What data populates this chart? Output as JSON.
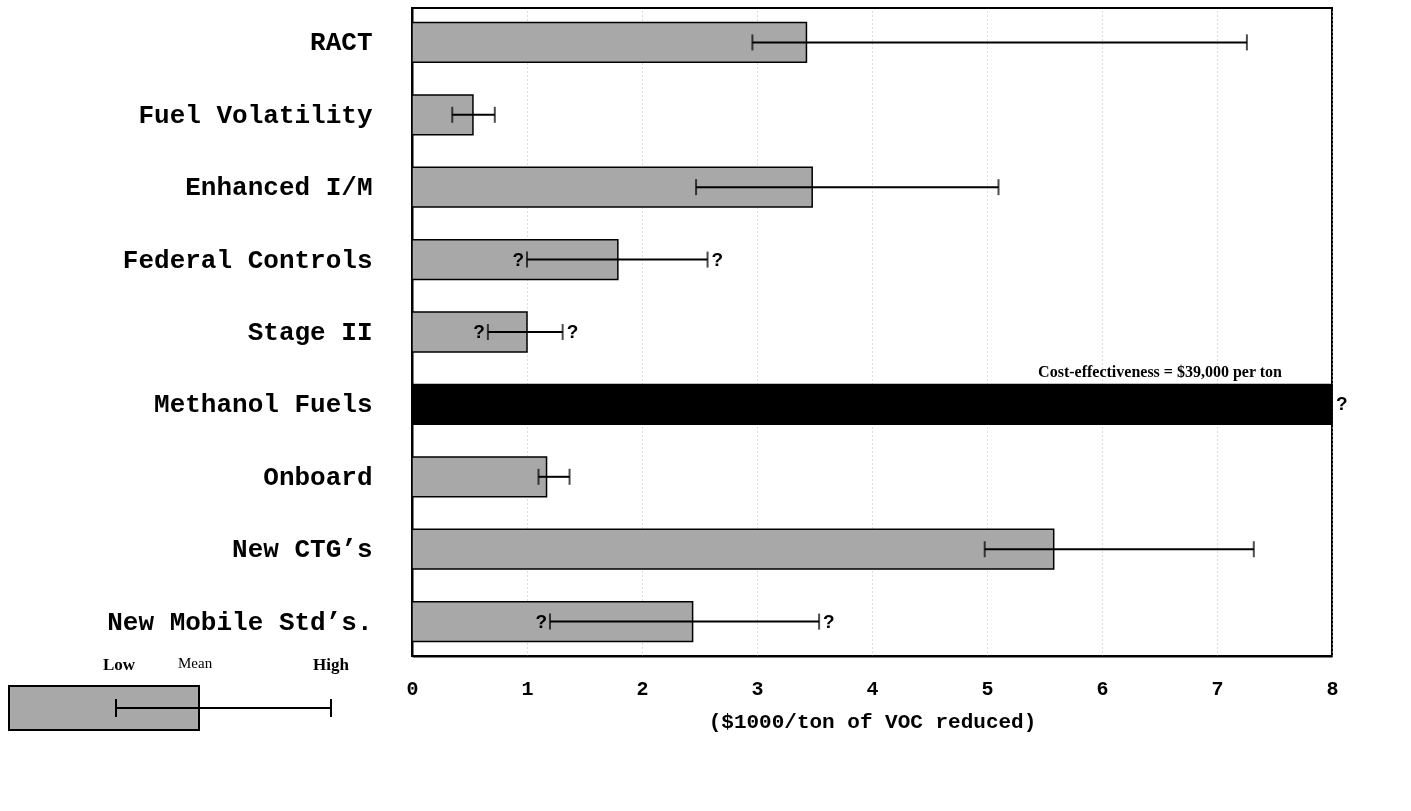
{
  "chart_data": {
    "type": "bar",
    "orientation": "horizontal",
    "xlabel": "($1000/ton of VOC reduced)",
    "categories": [
      "RACT",
      "Fuel Volatility",
      "Enhanced I/M",
      "Federal Controls",
      "Stage II",
      "Methanol Fuels",
      "Onboard",
      "New CTG’s",
      "New Mobile Std’s."
    ],
    "values": [
      3.43,
      0.53,
      3.48,
      1.79,
      1.0,
      8,
      1.17,
      5.58,
      2.44
    ],
    "colors": [
      "#a8a8a8",
      "#a8a8a8",
      "#a8a8a8",
      "#a8a8a8",
      "#a8a8a8",
      "#000000",
      "#a8a8a8",
      "#a8a8a8",
      "#a8a8a8"
    ],
    "errors": [
      [
        2.96,
        7.26
      ],
      [
        0.35,
        0.72
      ],
      [
        2.47,
        5.1
      ],
      [
        1.0,
        2.57
      ],
      [
        0.66,
        1.31
      ],
      null,
      [
        1.1,
        1.37
      ],
      [
        4.98,
        7.32
      ],
      [
        1.2,
        3.54
      ]
    ],
    "xlim": [
      0,
      8
    ],
    "xticks": [
      0,
      1,
      2,
      3,
      4,
      5,
      6,
      7,
      8
    ],
    "grid": "x",
    "annotations": [
      {
        "text": "?",
        "x": 1.0,
        "y": "Federal Controls"
      },
      {
        "text": "?",
        "x": 2.57,
        "y": "Federal Controls"
      },
      {
        "text": "?",
        "x": 0.66,
        "y": "Stage II"
      },
      {
        "text": "?",
        "x": 1.31,
        "y": "Stage II"
      },
      {
        "text": "?",
        "x": 8,
        "y": "Methanol Fuels"
      },
      "Cost-effectiveness = $39,000 per ton",
      {
        "text": "?",
        "x": 1.2,
        "y": "New Mobile Std’s."
      },
      {
        "text": "?",
        "x": 3.54,
        "y": "New Mobile Std’s."
      },
      "Low",
      "Mean",
      "High"
    ]
  }
}
